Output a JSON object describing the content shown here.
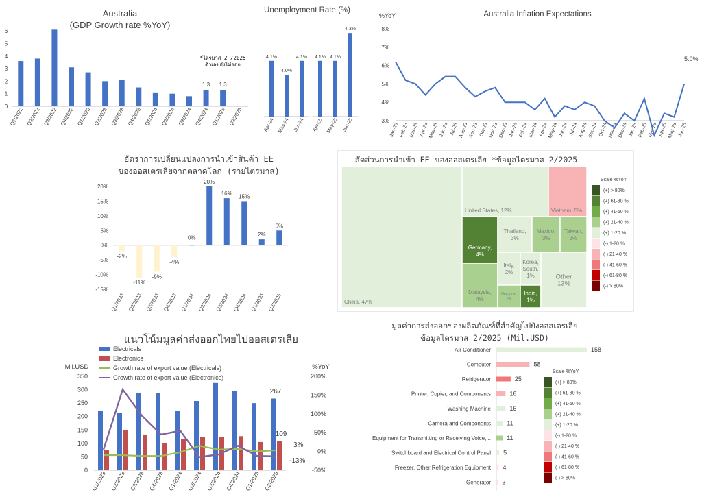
{
  "colors": {
    "blue": "#4472C4",
    "red": "#C0504D",
    "green": "#9BBB59",
    "purple": "#8064A2",
    "cream": "#FFF2CC",
    "axis": "#595959"
  },
  "gdp": {
    "title_line1": "Australia",
    "title_line2": "(GDP Growth rate %YoY)",
    "note_line1": "*ไตรมาส 2 /2025",
    "note_line2": "ตัวเลขยังไม่ออก"
  },
  "unemp": {
    "title": "Unemployment Rate (%)"
  },
  "inflation": {
    "title": "Australia Inflation Expectations",
    "yunit": "%YoY",
    "end_label": "5.0%"
  },
  "import_change": {
    "title_line1": "อัตราการเปลี่ยนแปลงการนำเข้าสินค้า EE",
    "title_line2": "ของออสเตรเลียจากตลาดโลก (รายไตรมาส)"
  },
  "treemap": {
    "title": "สัดส่วนการนำเข้า EE ของออสเตรเลีย *ข้อมูลไตรมาส 2/2025"
  },
  "trend": {
    "title": "แนวโน้มมูลค่าส่งออกไทยไปออสเตรเลีย",
    "yleft_label": "Mil.USD",
    "yright_label": "%YoY",
    "legend": [
      "Electricals",
      "Electronics",
      "Growth rate of export value (Electricals)",
      "Growth rate of export value (Electronics)"
    ],
    "last_electricals": "267",
    "last_electronics": "109",
    "growth_end_electricals": "3%",
    "growth_end_electronics": "-13%"
  },
  "products": {
    "title_line1": "มูลค่าการส่งออกของผลิตภัณฑ์ที่สำคัญไปยังออสเตรเลีย",
    "title_line2": "ข้อมูลไตรมาส 2/2025 (Mil.USD)"
  },
  "scale": {
    "title": "Scale %YoY",
    "items": [
      {
        "label": "(+) > 80%",
        "color": "#375623"
      },
      {
        "label": "(+) 61-80 %",
        "color": "#548235"
      },
      {
        "label": "(+) 41-60 %",
        "color": "#70AD47"
      },
      {
        "label": "(+) 21-40 %",
        "color": "#A9D08E"
      },
      {
        "label": "(+) 1-20 %",
        "color": "#E2EFDA"
      },
      {
        "label": "(-) 1-20 %",
        "color": "#FCE4E4"
      },
      {
        "label": "(-) 21-40 %",
        "color": "#F8B4B4"
      },
      {
        "label": "(-) 41-60 %",
        "color": "#F07878"
      },
      {
        "label": "(-) 61-80 %",
        "color": "#C00000"
      },
      {
        "label": "(-) > 80%",
        "color": "#7B0000"
      }
    ]
  },
  "chart_data": [
    {
      "id": "gdp",
      "type": "bar",
      "title": "Australia (GDP Growth rate %YoY)",
      "categories": [
        "Q1/2022",
        "Q2/2022",
        "Q3/2022",
        "Q4/2022",
        "Q1/2023",
        "Q2/2023",
        "Q3/2023",
        "Q4/2023",
        "Q1/2024",
        "Q2/2024",
        "Q3/2024",
        "Q4/2024",
        "Q1/2025",
        "Q2/2025"
      ],
      "values": [
        3.6,
        3.8,
        6.1,
        3.1,
        2.7,
        2.0,
        2.1,
        1.5,
        1.1,
        1.0,
        0.8,
        1.3,
        1.3,
        null
      ],
      "data_labels": [
        null,
        null,
        null,
        null,
        null,
        null,
        null,
        null,
        null,
        null,
        null,
        "1.3",
        "1.3",
        null
      ],
      "yticks": [
        "0",
        "1",
        "2",
        "3",
        "4",
        "5",
        "6"
      ],
      "ylim": [
        0,
        6.5
      ]
    },
    {
      "id": "unemp",
      "type": "bar",
      "title": "Unemployment Rate (%)",
      "groups": [
        {
          "categories": [
            "Apr-24",
            "May-24",
            "Jun-24"
          ],
          "values": [
            4.1,
            4.0,
            4.1
          ],
          "labels": [
            "4.1%",
            "4.0%",
            "4.1%"
          ]
        },
        {
          "categories": [
            "Apr-25",
            "May-25",
            "Jun-25"
          ],
          "values": [
            4.1,
            4.1,
            4.3
          ],
          "labels": [
            "4.1%",
            "4.1%",
            "4.3%"
          ]
        }
      ],
      "ylim": [
        3.7,
        4.35
      ]
    },
    {
      "id": "inflation",
      "type": "line",
      "title": "Australia Inflation Expectations",
      "categories": [
        "Jan-23",
        "Feb-23",
        "Mar-23",
        "Apr-23",
        "May-23",
        "Jun-23",
        "Jul-23",
        "Aug-23",
        "Sep-23",
        "Oct-23",
        "Nov-23",
        "Dec-23",
        "Jan-24",
        "Feb-24",
        "Mar-24",
        "Apr-24",
        "May-24",
        "Jun-24",
        "Jul-24",
        "Aug-24",
        "Sep-24",
        "Oct-24",
        "Nov-24",
        "Dec-24",
        "Jan-25",
        "Feb-25",
        "Mar-25",
        "Apr-25",
        "May-25",
        "Jun-25"
      ],
      "values": [
        6.2,
        5.2,
        5.0,
        4.4,
        5.0,
        5.4,
        5.4,
        4.8,
        4.3,
        4.6,
        4.8,
        4.0,
        4.0,
        4.0,
        3.6,
        4.2,
        3.2,
        3.8,
        3.6,
        4.0,
        3.8,
        3.0,
        2.6,
        3.4,
        3.0,
        4.2,
        2.2,
        3.4,
        3.2,
        5.0
      ],
      "yticks": [
        "3%",
        "4%",
        "5%",
        "6%",
        "7%",
        "8%"
      ],
      "ylim": [
        3,
        8
      ]
    },
    {
      "id": "import_change",
      "type": "bar",
      "title": "อัตราการเปลี่ยนแปลงการนำเข้าสินค้า EE ของออสเตรเลียจากตลาดโลก (รายไตรมาส)",
      "categories": [
        "Q1/2023",
        "Q2/2023",
        "Q3/2023",
        "Q4/2023",
        "Q1/2024",
        "Q2/2024",
        "Q3/2024",
        "Q4/2024",
        "Q1/2025",
        "Q2/2025"
      ],
      "values": [
        -2,
        -11,
        -9,
        -4,
        0,
        20,
        16,
        15,
        2,
        5
      ],
      "labels": [
        "-2%",
        "-11%",
        "-9%",
        "-4%",
        "0%",
        "20%",
        "16%",
        "15%",
        "2%",
        "5%"
      ],
      "yticks": [
        "-15%",
        "-10%",
        "-5%",
        "0%",
        "5%",
        "10%",
        "15%",
        "20%"
      ],
      "ylim": [
        -15,
        20
      ]
    },
    {
      "id": "treemap",
      "type": "treemap",
      "title": "สัดส่วนการนำเข้า EE ของออสเตรเลีย *ข้อมูลไตรมาส 2/2025",
      "items": [
        {
          "name": "China",
          "share": "47%",
          "label": "China, 47%",
          "scale": "(+) 1-20 %"
        },
        {
          "name": "United States",
          "share": "12%",
          "label": "United States, 12%",
          "scale": "(+) 1-20 %"
        },
        {
          "name": "Vietnam",
          "share": "5%",
          "label": "Vietnam, 5%",
          "scale": "(-) 21-40 %"
        },
        {
          "name": "Germany",
          "share": "4%",
          "label1": "Germany,",
          "label2": "4%",
          "scale": "(+) 61-80 %"
        },
        {
          "name": "Thailand",
          "share": "3%",
          "label1": "Thailand,",
          "label2": "3%",
          "scale": "(+) 1-20 %"
        },
        {
          "name": "Mexico",
          "share": "3%",
          "label1": "Mexico,",
          "label2": "3%",
          "scale": "(+) 21-40 %"
        },
        {
          "name": "Taiwan",
          "share": "3%",
          "label1": "Taiwan,",
          "label2": "3%",
          "scale": "(+) 21-40 %"
        },
        {
          "name": "Malaysia",
          "share": "4%",
          "label1": "Malaysia,",
          "label2": "4%",
          "scale": "(+) 21-40 %"
        },
        {
          "name": "Italy",
          "share": "2%",
          "label1": "Italy,",
          "label2": "2%",
          "scale": "(+) 1-20 %"
        },
        {
          "name": "Korea, South",
          "share": "1%",
          "label1": "Korea,",
          "label2": "South,",
          "label3": "1%",
          "scale": "(+) 1-20 %"
        },
        {
          "name": "Singapore",
          "share": "2%",
          "label1": "Singapore,",
          "label2": "2%",
          "scale": "(+) 21-40 %"
        },
        {
          "name": "India",
          "share": "1%",
          "label1": "India,",
          "label2": "1%",
          "scale": "(+) 61-80 %"
        },
        {
          "name": "Other",
          "share": "13%",
          "label1": "Other",
          "label2": "13%",
          "scale": "(+) 1-20 %"
        }
      ]
    },
    {
      "id": "trend",
      "type": "bar+line",
      "title": "แนวโน้มมูลค่าส่งออกไทยไปออสเตรเลีย",
      "categories": [
        "Q1/2023",
        "Q2/2023",
        "Q3/2023",
        "Q4/2023",
        "Q1/2024",
        "Q2/2024",
        "Q3/2024",
        "Q4/2024",
        "Q1/2025",
        "Q2/2025"
      ],
      "series": [
        {
          "name": "Electricals",
          "type": "bar",
          "values": [
            220,
            213,
            287,
            287,
            222,
            258,
            325,
            295,
            250,
            267
          ]
        },
        {
          "name": "Electronics",
          "type": "bar",
          "values": [
            75,
            150,
            133,
            102,
            115,
            125,
            125,
            127,
            105,
            109
          ]
        },
        {
          "name": "Growth rate of export value (Electricals)",
          "type": "line",
          "axis": "right",
          "values": [
            -10,
            -10,
            -12,
            -12,
            -2,
            15,
            5,
            7,
            0,
            3
          ]
        },
        {
          "name": "Growth rate of export value (Electronics)",
          "type": "line",
          "axis": "right",
          "values": [
            5,
            165,
            95,
            45,
            55,
            -15,
            -8,
            15,
            -12,
            -13
          ]
        }
      ],
      "yleft_ticks": [
        "0",
        "50",
        "100",
        "150",
        "200",
        "250",
        "300",
        "350"
      ],
      "ylim_left": [
        0,
        350
      ],
      "yright_ticks": [
        "-50%",
        "0%",
        "50%",
        "100%",
        "150%",
        "200%"
      ],
      "ylim_right": [
        -50,
        200
      ]
    },
    {
      "id": "products",
      "type": "bar",
      "orientation": "horizontal",
      "title": "มูลค่าการส่งออกของผลิตภัณฑ์ที่สำคัญไปยังออสเตรเลีย ข้อมูลไตรมาส 2/2025 (Mil.USD)",
      "categories": [
        "Air Conditioner",
        "Computer",
        "Refrigerator",
        "Printer, Copier, and Components",
        "Washing Machine",
        "Camera and Components",
        "Equipment for Transmitting or Receiving Voice,...",
        "Switchboard and Electrical Control Panel",
        "Freezer, Other Refrigeration Equipment",
        "Generator"
      ],
      "values": [
        158,
        58,
        25,
        16,
        16,
        11,
        11,
        5,
        4,
        3
      ],
      "scale": [
        "(+) 1-20 %",
        "(-) 21-40 %",
        "(-) 41-60 %",
        "(-) 21-40 %",
        "(+) 1-20 %",
        "(+) 1-20 %",
        "(+) 21-40 %",
        "(+) 1-20 %",
        "(-) 1-20 %",
        "(-) 1-20 %"
      ]
    }
  ]
}
